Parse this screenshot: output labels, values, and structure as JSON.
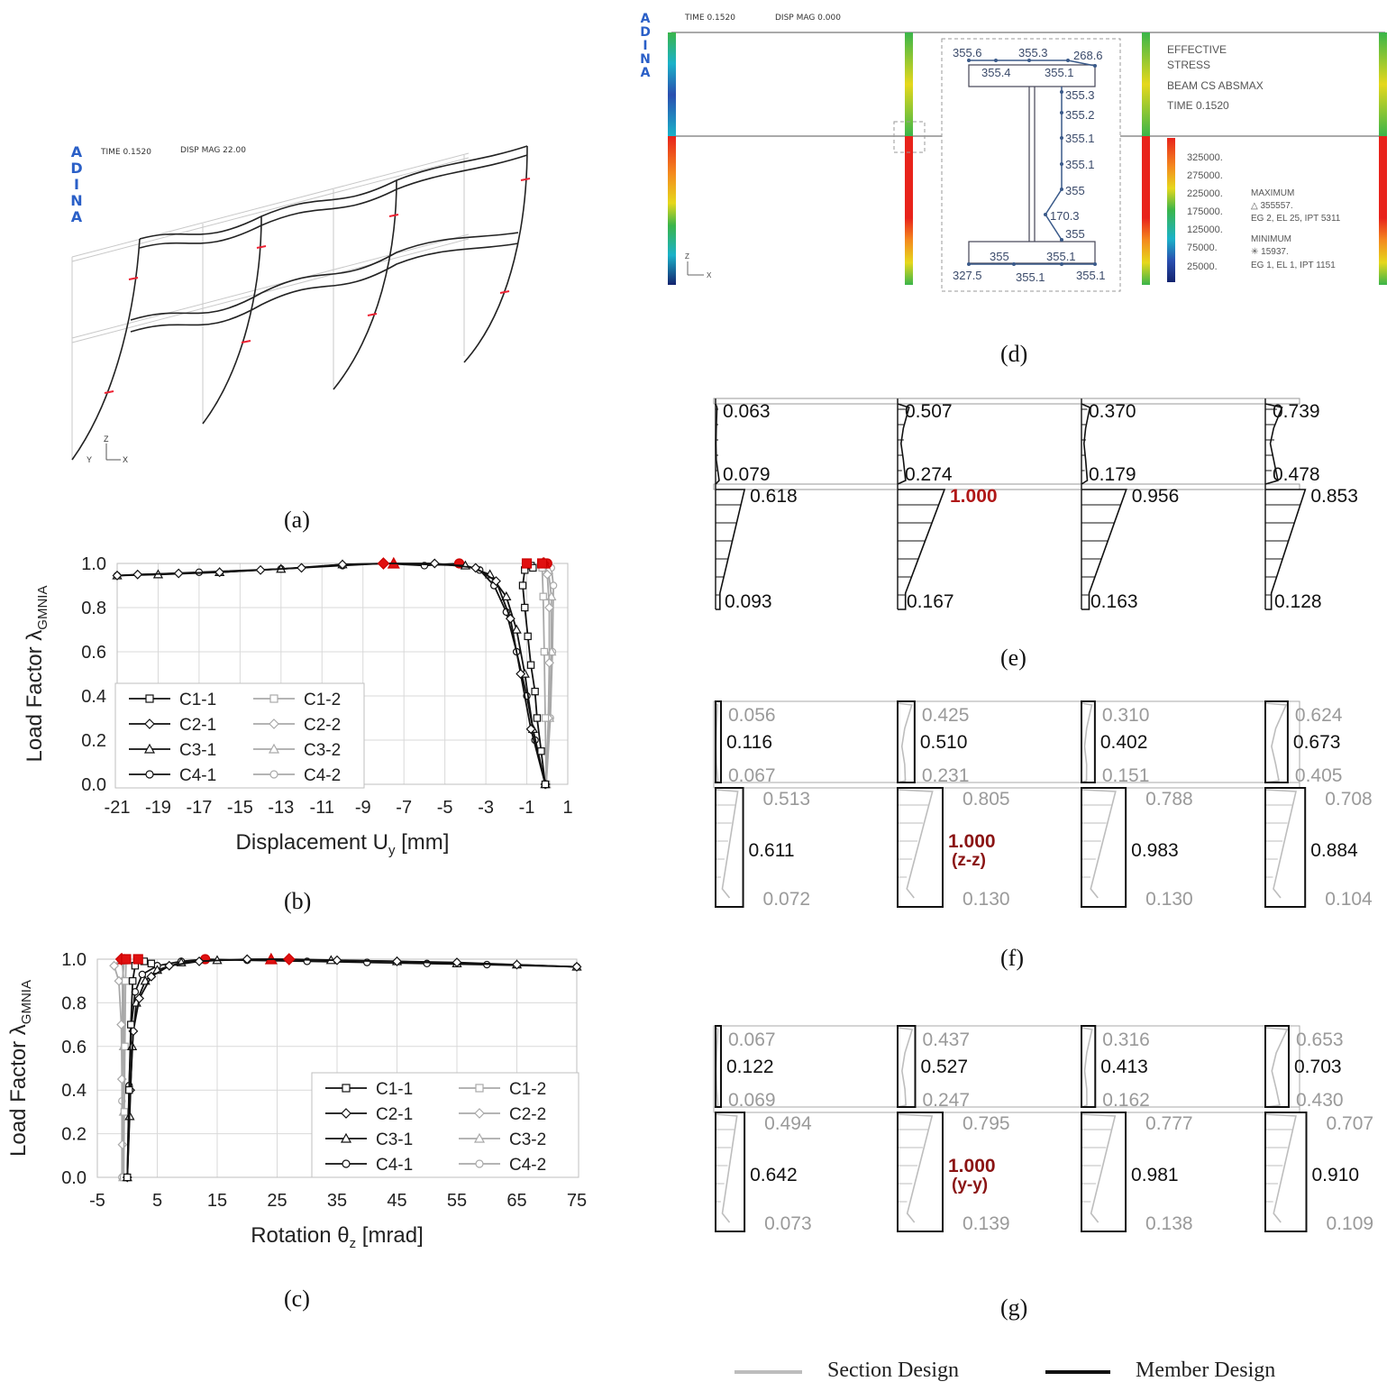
{
  "captions": {
    "a": "(a)",
    "b": "(b)",
    "c": "(c)",
    "d": "(d)",
    "e": "(e)",
    "f": "(f)",
    "g": "(g)"
  },
  "panel_a": {
    "logo": [
      "A",
      "D",
      "I",
      "N",
      "A"
    ],
    "time": "TIME 0.1520",
    "disp": "DISP MAG 22.00",
    "axes": {
      "z": "Z",
      "y": "Y",
      "x": "X"
    }
  },
  "panel_d": {
    "logo": [
      "A",
      "D",
      "I",
      "N",
      "A"
    ],
    "time": "TIME 0.1520",
    "disp": "DISP MAG 0.000",
    "section_values": [
      "355.6",
      "355.3",
      "268.6",
      "355.4",
      "355.1",
      "355.3",
      "355.2",
      "355.1",
      "355.1",
      "355",
      "170.3",
      "355",
      "355",
      "355.1",
      "327.5",
      "355.1",
      "355.1"
    ],
    "title_lines": [
      "EFFECTIVE",
      "STRESS",
      "BEAM CS ABSMAX",
      "TIME 0.1520"
    ],
    "scale_values": [
      "325000.",
      "275000.",
      "225000.",
      "175000.",
      "125000.",
      "75000.",
      "25000."
    ],
    "max_block": [
      "MAXIMUM",
      "△ 355557.",
      "EG 2, EL 25, IPT 5311"
    ],
    "min_block": [
      "MINIMUM",
      "✳ 15937.",
      "EG 1, EL 1, IPT 1151"
    ],
    "axes": {
      "z": "Z",
      "x": "X"
    },
    "colors": {
      "red": "#e8231b",
      "orange": "#f48a1e",
      "yellow": "#e6d81c",
      "green": "#3ab54a",
      "cyan": "#1bb2c9",
      "blue": "#2a4fb0",
      "navy": "#13236e"
    }
  },
  "panel_e": {
    "columns": [
      {
        "top": "0.063",
        "mid": "0.079",
        "low_top": "0.618",
        "low_bot": "0.093"
      },
      {
        "top": "0.507",
        "mid": "0.274",
        "low_top": "1.000",
        "low_bot": "0.167"
      },
      {
        "top": "0.370",
        "mid": "0.179",
        "low_top": "0.956",
        "low_bot": "0.163"
      },
      {
        "top": "0.739",
        "mid": "0.478",
        "low_top": "0.853",
        "low_bot": "0.128"
      }
    ]
  },
  "panel_f": {
    "columns": [
      {
        "top": "0.056",
        "upper": "0.116",
        "mid": "0.067",
        "low_top": "0.513",
        "lower": "0.611",
        "low_bot": "0.072"
      },
      {
        "top": "0.425",
        "upper": "0.510",
        "mid": "0.231",
        "low_top": "0.805",
        "lower": "1.000",
        "lower_axis": "(z-z)",
        "low_bot": "0.130"
      },
      {
        "top": "0.310",
        "upper": "0.402",
        "mid": "0.151",
        "low_top": "0.788",
        "lower": "0.983",
        "low_bot": "0.130"
      },
      {
        "top": "0.624",
        "upper": "0.673",
        "mid": "0.405",
        "low_top": "0.708",
        "lower": "0.884",
        "low_bot": "0.104"
      }
    ]
  },
  "panel_g": {
    "columns": [
      {
        "top": "0.067",
        "upper": "0.122",
        "mid": "0.069",
        "low_top": "0.494",
        "lower": "0.642",
        "low_bot": "0.073"
      },
      {
        "top": "0.437",
        "upper": "0.527",
        "mid": "0.247",
        "low_top": "0.795",
        "lower": "1.000",
        "lower_axis": "(y-y)",
        "low_bot": "0.139"
      },
      {
        "top": "0.316",
        "upper": "0.413",
        "mid": "0.162",
        "low_top": "0.777",
        "lower": "0.981",
        "low_bot": "0.138"
      },
      {
        "top": "0.653",
        "upper": "0.703",
        "mid": "0.430",
        "low_top": "0.707",
        "lower": "0.910",
        "low_bot": "0.109"
      }
    ]
  },
  "legend_bottom": {
    "section": "Section Design",
    "member": "Member Design"
  },
  "chart_data": [
    {
      "id": "b",
      "type": "line",
      "xlabel_main": "Displacement U",
      "xlabel_sub": "y",
      "xlabel_tail": " [mm]",
      "ylabel_main": "Load Factor λ",
      "ylabel_sub": "GMNIA",
      "xlim": [
        -21,
        1
      ],
      "ylim": [
        0,
        1.0
      ],
      "xticks": [
        "-21",
        "-19",
        "-17",
        "-15",
        "-13",
        "-11",
        "-9",
        "-7",
        "-5",
        "-3",
        "-1",
        "1"
      ],
      "yticks": [
        "0.0",
        "0.2",
        "0.4",
        "0.6",
        "0.8",
        "1.0"
      ],
      "series": [
        {
          "name": "C1-1",
          "color": "#111111",
          "marker": "square",
          "points": [
            [
              -0.1,
              0.0
            ],
            [
              -0.3,
              0.15
            ],
            [
              -0.5,
              0.3
            ],
            [
              -0.6,
              0.42
            ],
            [
              -0.8,
              0.54
            ],
            [
              -0.95,
              0.67
            ],
            [
              -1.1,
              0.8
            ],
            [
              -1.2,
              0.9
            ],
            [
              -1.1,
              0.97
            ],
            [
              -1.0,
              1.0
            ],
            [
              -0.8,
              0.99
            ],
            [
              -0.7,
              0.98
            ]
          ],
          "peak": [
            -1.0,
            1.0
          ]
        },
        {
          "name": "C2-1",
          "color": "#111111",
          "marker": "diamond",
          "points": [
            [
              -0.1,
              0.0
            ],
            [
              -0.8,
              0.25
            ],
            [
              -1.3,
              0.5
            ],
            [
              -1.8,
              0.75
            ],
            [
              -2.5,
              0.92
            ],
            [
              -3.5,
              0.98
            ],
            [
              -5.5,
              1.0
            ],
            [
              -8,
              1.0
            ],
            [
              -10,
              0.995
            ],
            [
              -12,
              0.98
            ],
            [
              -14,
              0.97
            ],
            [
              -16,
              0.96
            ],
            [
              -18,
              0.955
            ],
            [
              -20,
              0.95
            ],
            [
              -21,
              0.945
            ]
          ],
          "peak": [
            -8,
            1.0
          ]
        },
        {
          "name": "C3-1",
          "color": "#111111",
          "marker": "triangle",
          "points": [
            [
              -0.1,
              0.0
            ],
            [
              -0.7,
              0.25
            ],
            [
              -1.1,
              0.5
            ],
            [
              -1.5,
              0.7
            ],
            [
              -2.0,
              0.85
            ],
            [
              -2.8,
              0.95
            ],
            [
              -4,
              0.99
            ],
            [
              -7.5,
              1.0
            ],
            [
              -10,
              0.995
            ],
            [
              -13,
              0.975
            ],
            [
              -16,
              0.96
            ],
            [
              -19,
              0.95
            ],
            [
              -21,
              0.945
            ]
          ],
          "peak": [
            -7.5,
            1.0
          ]
        },
        {
          "name": "C4-1",
          "color": "#111111",
          "marker": "circle",
          "points": [
            [
              -0.1,
              0.0
            ],
            [
              -0.6,
              0.2
            ],
            [
              -1.0,
              0.4
            ],
            [
              -1.5,
              0.6
            ],
            [
              -2.0,
              0.78
            ],
            [
              -2.6,
              0.9
            ],
            [
              -3.3,
              0.97
            ],
            [
              -4.3,
              1.0
            ],
            [
              -6,
              0.99
            ],
            [
              -8,
              1.0
            ],
            [
              -10,
              0.99
            ],
            [
              -13,
              0.975
            ],
            [
              -17,
              0.96
            ],
            [
              -21,
              0.945
            ]
          ],
          "peak": [
            -4.3,
            1.0
          ]
        },
        {
          "name": "C1-2",
          "color": "#a9a9a9",
          "marker": "square",
          "points": [
            [
              -0.05,
              0.0
            ],
            [
              -0.1,
              0.3
            ],
            [
              -0.15,
              0.6
            ],
            [
              -0.2,
              0.85
            ],
            [
              -0.25,
              0.98
            ],
            [
              -0.3,
              1.0
            ]
          ],
          "peak": [
            -0.25,
            1.0
          ]
        },
        {
          "name": "C2-2",
          "color": "#a9a9a9",
          "marker": "diamond",
          "points": [
            [
              -0.05,
              0.0
            ],
            [
              0.05,
              0.3
            ],
            [
              0.1,
              0.55
            ],
            [
              0.1,
              0.8
            ],
            [
              0.0,
              0.95
            ],
            [
              -0.2,
              1.0
            ]
          ],
          "peak": [
            -0.2,
            1.0
          ]
        },
        {
          "name": "C3-2",
          "color": "#a9a9a9",
          "marker": "triangle",
          "points": [
            [
              -0.05,
              0.0
            ],
            [
              0.1,
              0.3
            ],
            [
              0.2,
              0.6
            ],
            [
              0.2,
              0.85
            ],
            [
              0.05,
              0.97
            ],
            [
              -0.15,
              1.0
            ]
          ],
          "peak": [
            -0.15,
            1.0
          ]
        },
        {
          "name": "C4-2",
          "color": "#a9a9a9",
          "marker": "circle",
          "points": [
            [
              -0.05,
              0.0
            ],
            [
              0.15,
              0.3
            ],
            [
              0.25,
              0.6
            ],
            [
              0.3,
              0.9
            ],
            [
              0.2,
              0.98
            ],
            [
              0.0,
              1.0
            ]
          ],
          "peak": [
            0.0,
            1.0
          ]
        }
      ]
    },
    {
      "id": "c",
      "type": "line",
      "xlabel_main": "Rotation θ",
      "xlabel_sub": "z",
      "xlabel_tail": " [mrad]",
      "ylabel_main": "Load Factor λ",
      "ylabel_sub": "GMNIA",
      "xlim": [
        -5,
        75
      ],
      "ylim": [
        0,
        1.0
      ],
      "xticks": [
        "-5",
        "5",
        "15",
        "25",
        "35",
        "45",
        "55",
        "65",
        "75"
      ],
      "yticks": [
        "0.0",
        "0.2",
        "0.4",
        "0.6",
        "0.8",
        "1.0"
      ],
      "series": [
        {
          "name": "C1-1",
          "color": "#111111",
          "marker": "square",
          "points": [
            [
              0,
              0.0
            ],
            [
              0.3,
              0.4
            ],
            [
              0.6,
              0.7
            ],
            [
              0.9,
              0.9
            ],
            [
              1.3,
              0.97
            ],
            [
              1.8,
              1.0
            ],
            [
              2.8,
              0.99
            ],
            [
              4,
              0.98
            ]
          ],
          "peak": [
            1.8,
            1.0
          ]
        },
        {
          "name": "C2-1",
          "color": "#111111",
          "marker": "diamond",
          "points": [
            [
              0,
              0.0
            ],
            [
              0.5,
              0.4
            ],
            [
              1,
              0.67
            ],
            [
              2,
              0.82
            ],
            [
              4,
              0.92
            ],
            [
              7,
              0.97
            ],
            [
              12,
              0.99
            ],
            [
              20,
              1.0
            ],
            [
              27,
              1.0
            ],
            [
              35,
              0.995
            ],
            [
              45,
              0.99
            ],
            [
              55,
              0.985
            ],
            [
              65,
              0.975
            ],
            [
              75,
              0.965
            ]
          ],
          "peak": [
            27,
            1.0
          ]
        },
        {
          "name": "C3-1",
          "color": "#111111",
          "marker": "triangle",
          "points": [
            [
              0,
              0.0
            ],
            [
              0.4,
              0.28
            ],
            [
              0.8,
              0.6
            ],
            [
              1.5,
              0.8
            ],
            [
              3,
              0.9
            ],
            [
              5,
              0.95
            ],
            [
              9,
              0.985
            ],
            [
              15,
              0.995
            ],
            [
              24,
              1.0
            ],
            [
              34,
              0.995
            ],
            [
              45,
              0.99
            ],
            [
              55,
              0.98
            ],
            [
              65,
              0.975
            ],
            [
              75,
              0.965
            ]
          ],
          "peak": [
            24,
            1.0
          ]
        },
        {
          "name": "C4-1",
          "color": "#111111",
          "marker": "circle",
          "points": [
            [
              0,
              0.0
            ],
            [
              0.3,
              0.42
            ],
            [
              0.7,
              0.7
            ],
            [
              1.3,
              0.85
            ],
            [
              2.5,
              0.93
            ],
            [
              5,
              0.97
            ],
            [
              9,
              0.99
            ],
            [
              13,
              1.0
            ],
            [
              20,
              0.995
            ],
            [
              30,
              0.99
            ],
            [
              40,
              0.985
            ],
            [
              50,
              0.98
            ],
            [
              60,
              0.975
            ],
            [
              75,
              0.965
            ]
          ],
          "peak": [
            13,
            1.0
          ]
        },
        {
          "name": "C1-2",
          "color": "#a9a9a9",
          "marker": "square",
          "points": [
            [
              -0.6,
              0.0
            ],
            [
              -0.5,
              0.3
            ],
            [
              -0.4,
              0.6
            ],
            [
              -0.3,
              0.9
            ],
            [
              -0.2,
              1.0
            ]
          ],
          "peak": [
            -0.2,
            1.0
          ]
        },
        {
          "name": "C2-2",
          "color": "#a9a9a9",
          "marker": "diamond",
          "points": [
            [
              -0.8,
              0.15
            ],
            [
              -0.9,
              0.45
            ],
            [
              -1.0,
              0.7
            ],
            [
              -1.4,
              0.9
            ],
            [
              -2.2,
              0.97
            ],
            [
              -1.0,
              1.0
            ]
          ],
          "peak": [
            -1.0,
            1.0
          ]
        },
        {
          "name": "C3-2",
          "color": "#a9a9a9",
          "marker": "triangle",
          "points": [
            [
              -0.7,
              0.0
            ],
            [
              -0.6,
              0.3
            ],
            [
              -0.6,
              0.6
            ],
            [
              -0.6,
              0.9
            ],
            [
              -0.9,
              1.0
            ]
          ],
          "peak": [
            -0.9,
            1.0
          ]
        },
        {
          "name": "C4-2",
          "color": "#a9a9a9",
          "marker": "circle",
          "points": [
            [
              -0.9,
              0.0
            ],
            [
              -0.9,
              0.35
            ],
            [
              -0.8,
              0.7
            ],
            [
              -0.8,
              0.9
            ],
            [
              -0.5,
              1.0
            ]
          ],
          "peak": [
            -0.5,
            1.0
          ]
        }
      ]
    }
  ]
}
